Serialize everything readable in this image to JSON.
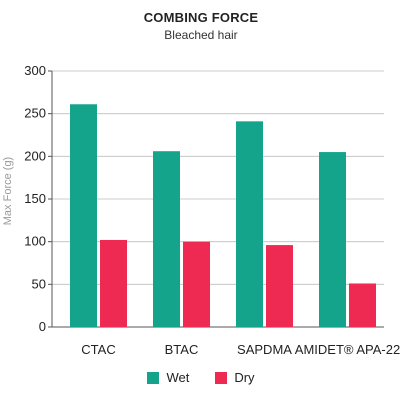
{
  "chart_data": {
    "type": "bar",
    "title": "COMBING FORCE",
    "subtitle": "Bleached hair",
    "ylabel": "Max Force (g)",
    "xlabel": "",
    "ylim": [
      0,
      300
    ],
    "yticks": [
      0,
      50,
      100,
      150,
      200,
      250,
      300
    ],
    "categories": [
      "CTAC",
      "BTAC",
      "SAPDMA",
      "AMIDET® APA-22"
    ],
    "series": [
      {
        "name": "Wet",
        "color": "#14a38b",
        "values": [
          261,
          206,
          241,
          205
        ]
      },
      {
        "name": "Dry",
        "color": "#ef2a52",
        "values": [
          102,
          100,
          96,
          51
        ]
      }
    ],
    "grid": true,
    "legend_position": "bottom"
  }
}
